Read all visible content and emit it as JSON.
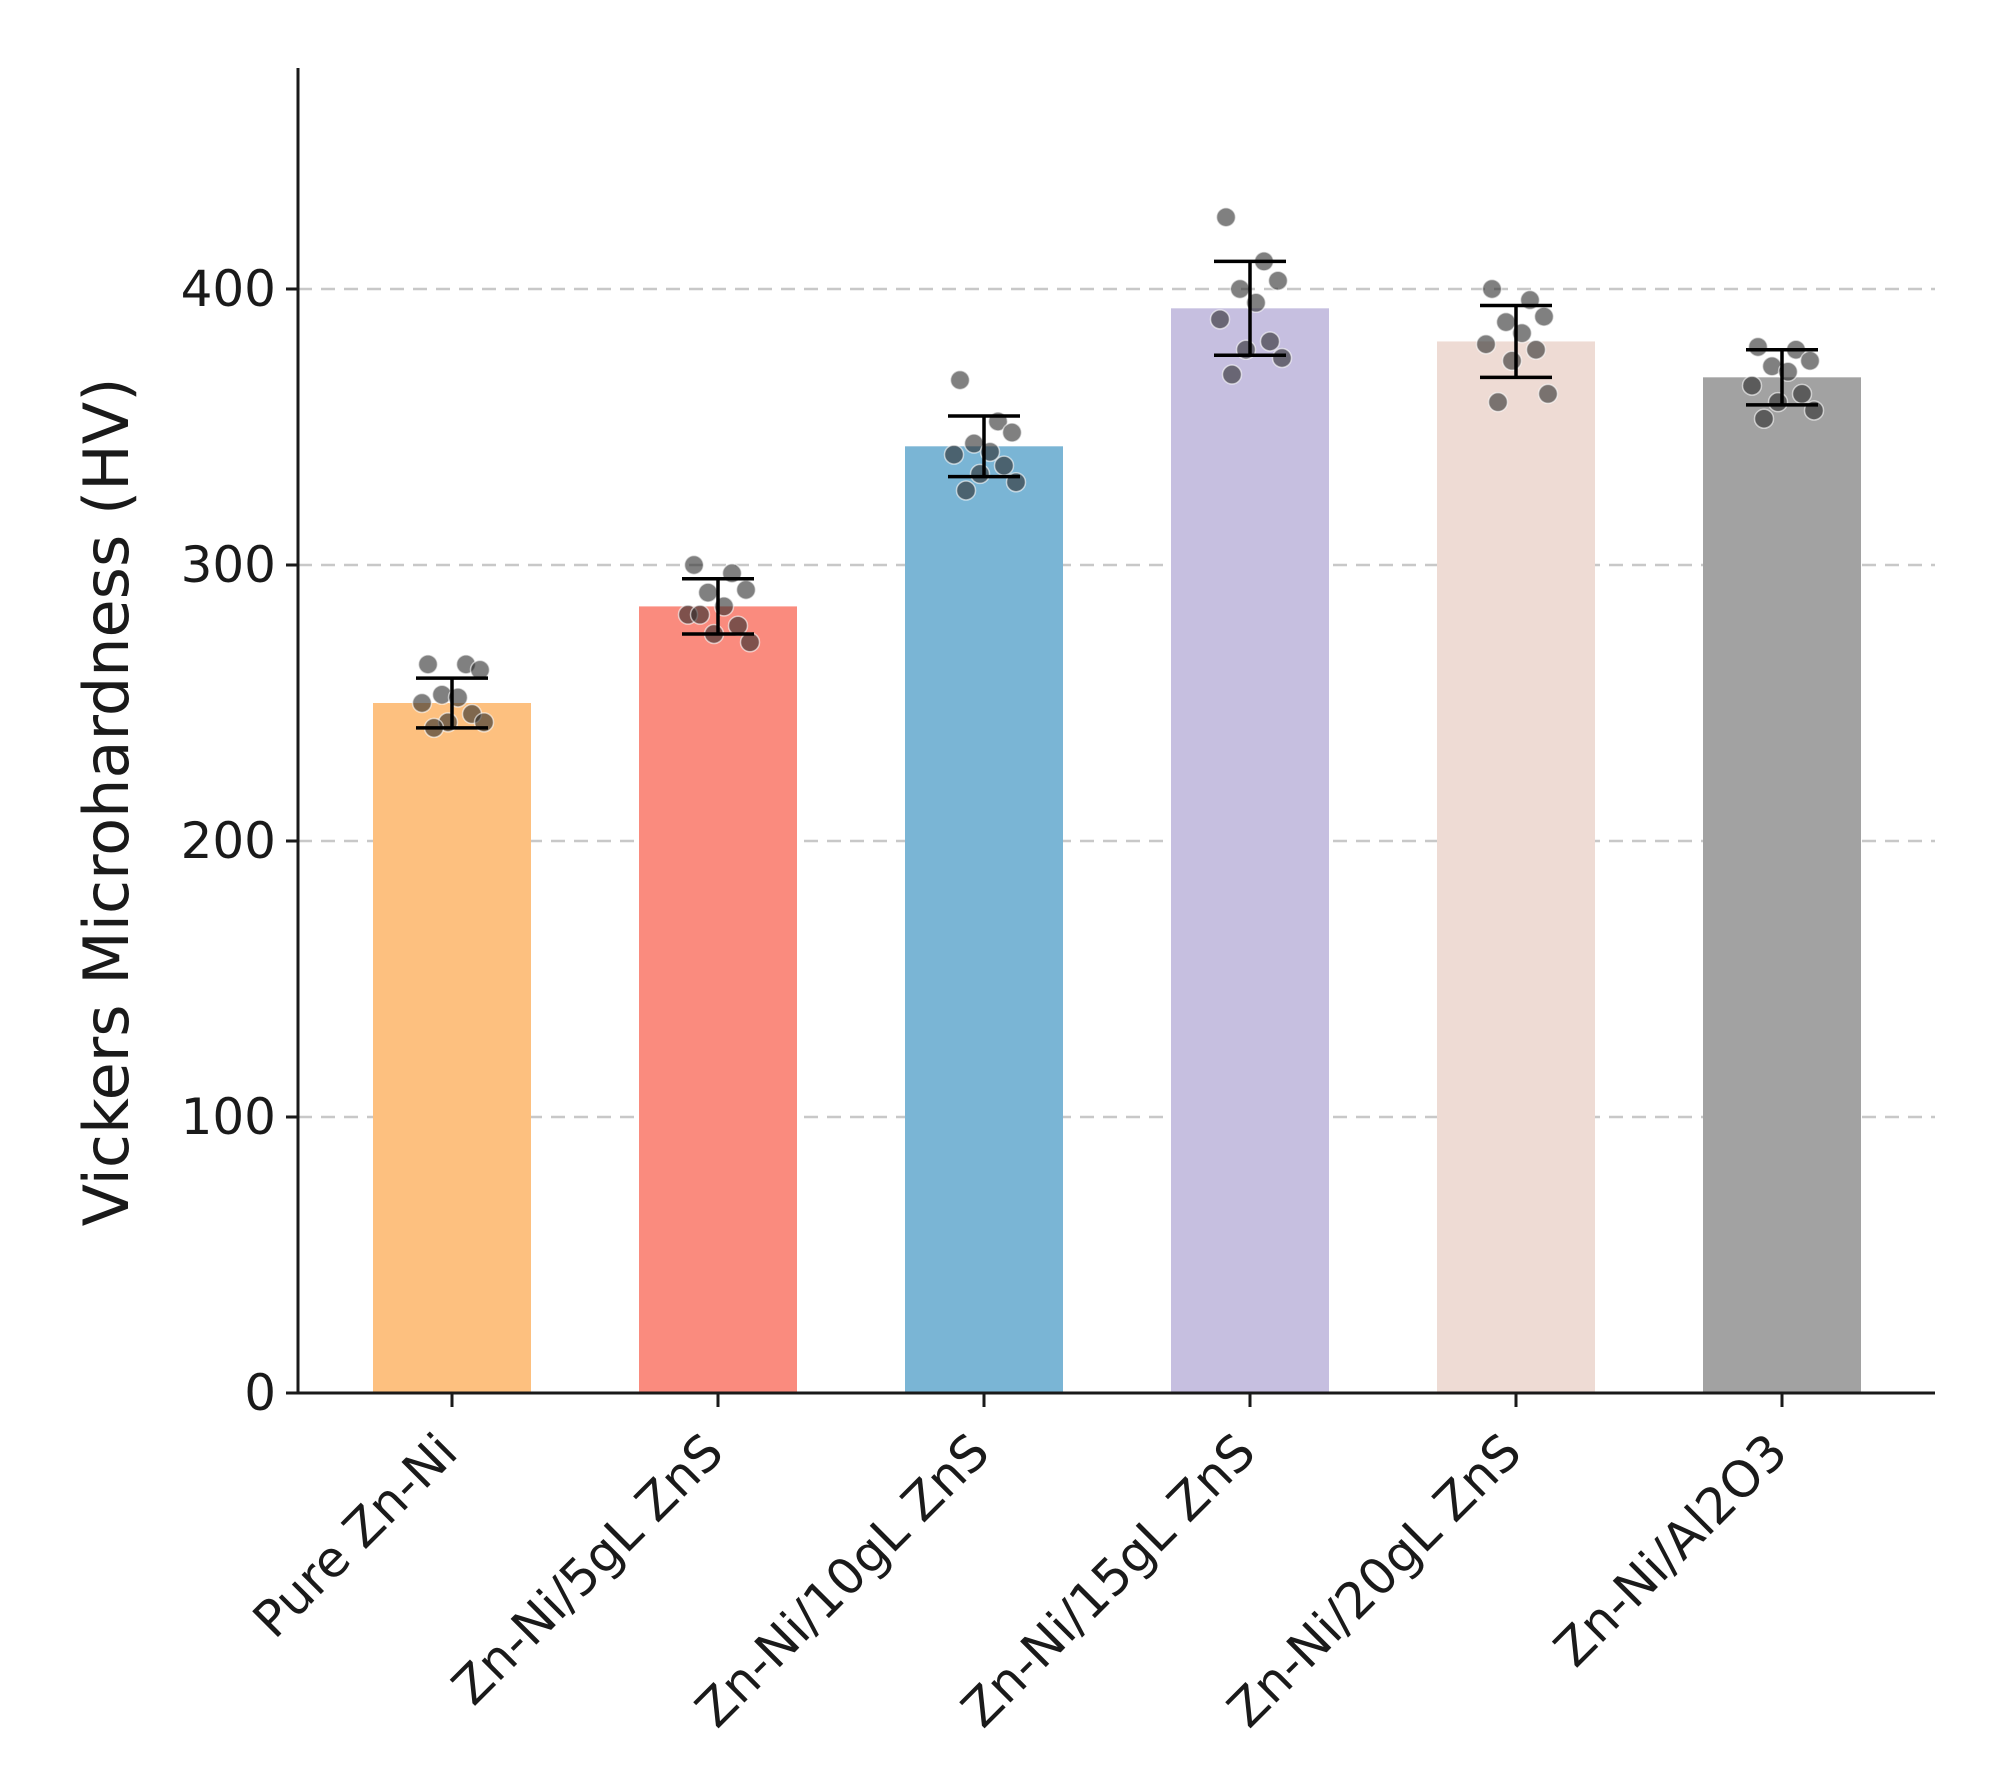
{
  "chart_data": {
    "type": "bar",
    "title": "",
    "xlabel": "",
    "ylabel": "Vickers Microhardness (HV)",
    "ylim": [
      0,
      480
    ],
    "yticks": [
      0,
      100,
      200,
      300,
      400
    ],
    "grid": "horizontal dashed",
    "categories": [
      "Pure Zn-Ni",
      "Zn-Ni/5gL ZnS",
      "Zn-Ni/10gL ZnS",
      "Zn-Ni/15gL ZnS",
      "Zn-Ni/20gL ZnS",
      "Zn-Ni/Al2O3"
    ],
    "values": [
      250,
      285,
      343,
      393,
      381,
      368
    ],
    "error": [
      9,
      10,
      11,
      17,
      13,
      10
    ],
    "colors": [
      "#fdc07f",
      "#fa8b7e",
      "#7ab5d5",
      "#c6bfe0",
      "#eedbd4",
      "#a2a2a2"
    ],
    "points": [
      [
        264,
        264,
        262,
        253,
        252,
        250,
        246,
        243,
        243,
        241
      ],
      [
        300,
        297,
        291,
        290,
        285,
        282,
        278,
        275,
        272,
        282
      ],
      [
        367,
        352,
        348,
        344,
        341,
        340,
        336,
        333,
        330,
        327
      ],
      [
        426,
        410,
        403,
        400,
        395,
        389,
        381,
        378,
        375,
        369
      ],
      [
        400,
        396,
        390,
        388,
        384,
        380,
        378,
        374,
        362,
        359
      ],
      [
        379,
        378,
        374,
        372,
        370,
        365,
        362,
        359,
        356,
        353
      ]
    ]
  }
}
